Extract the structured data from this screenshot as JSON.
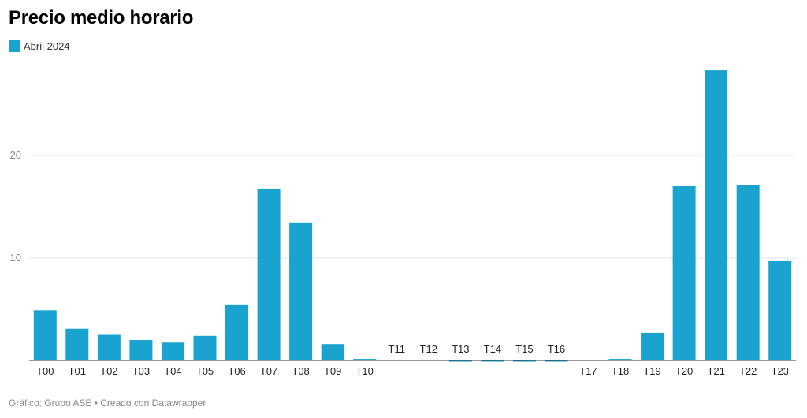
{
  "title": "Precio medio horario",
  "legend": {
    "label": "Abril 2024",
    "color": "#1aa3cf"
  },
  "footer": "Gráfico: Grupo ASE • Creado con Datawrapper",
  "chart_data": {
    "type": "bar",
    "title": "Precio medio horario",
    "xlabel": "",
    "ylabel": "",
    "ylim": [
      0,
      29
    ],
    "yticks": [
      10,
      20
    ],
    "grid": true,
    "legend_position": "top-left",
    "categories": [
      "T00",
      "T01",
      "T02",
      "T03",
      "T04",
      "T05",
      "T06",
      "T07",
      "T08",
      "T09",
      "T10",
      "T11",
      "T12",
      "T13",
      "T14",
      "T15",
      "T16",
      "T17",
      "T18",
      "T19",
      "T20",
      "T21",
      "T22",
      "T23"
    ],
    "series": [
      {
        "name": "Abril 2024",
        "color": "#1aa3cf",
        "values": [
          4.9,
          3.1,
          2.5,
          2.0,
          1.75,
          2.4,
          5.4,
          16.7,
          13.4,
          1.6,
          0.15,
          0,
          0,
          -0.05,
          -0.05,
          -0.1,
          -0.1,
          0,
          0.15,
          2.7,
          17.0,
          28.3,
          17.1,
          9.7
        ]
      }
    ]
  }
}
